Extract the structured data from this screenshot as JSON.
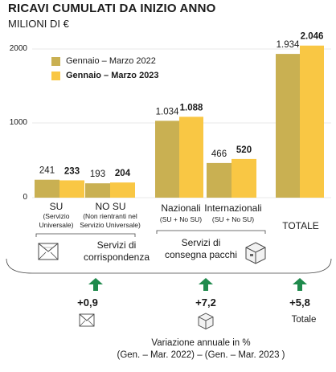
{
  "header": {
    "title": "RICAVI CUMULATI DA INIZIO ANNO",
    "subtitle": "MILIONI DI €"
  },
  "legend": [
    {
      "label": "Gennaio – Marzo 2022",
      "color": "#c9b052",
      "bold": false
    },
    {
      "label": "Gennaio – Marzo 2023",
      "color": "#f9c744",
      "bold": true
    }
  ],
  "chart_data": {
    "type": "bar",
    "categories": [
      "SU",
      "NO SU",
      "Nazionali",
      "Internazionali",
      "TOTALE"
    ],
    "series": [
      {
        "name": "Gennaio – Marzo 2022",
        "values": [
          241,
          193,
          1034,
          466,
          1934
        ],
        "labels": [
          "241",
          "193",
          "1.034",
          "466",
          "1.934"
        ]
      },
      {
        "name": "Gennaio – Marzo 2023",
        "values": [
          233,
          204,
          1088,
          520,
          2046
        ],
        "labels": [
          "233",
          "204",
          "1.088",
          "520",
          "2.046"
        ]
      }
    ],
    "yticks": [
      "0",
      "1000",
      "2000"
    ],
    "ylim": [
      0,
      2100
    ]
  },
  "categories": {
    "su": {
      "name": "SU",
      "sub": [
        "(Servizio",
        "Universale)"
      ]
    },
    "nosu": {
      "name": "NO SU",
      "sub": [
        "(Non rientranti nel",
        "Servizio Universale)"
      ]
    },
    "naz": {
      "name": "Nazionali",
      "sub": "(SU + No SU)"
    },
    "int": {
      "name": "Internazionali",
      "sub": "(SU + No SU)"
    },
    "tot": {
      "name": "TOTALE"
    }
  },
  "groups": {
    "corrispondenza": [
      "Servizi di",
      "corrispondenza"
    ],
    "pacchi": [
      "Servizi di",
      "consegna pacchi"
    ]
  },
  "changes": {
    "corrispondenza": "+0,9",
    "pacchi": "+7,2",
    "totale": "+5,8",
    "totale_label": "Totale"
  },
  "footer": {
    "line1": "Variazione annuale in %",
    "line2": "(Gen. – Mar. 2022) – (Gen. – Mar. 2023 )"
  },
  "colors": {
    "arrow": "#1f8a4c",
    "grid": "#d9d9d9",
    "bracket": "#333333"
  }
}
